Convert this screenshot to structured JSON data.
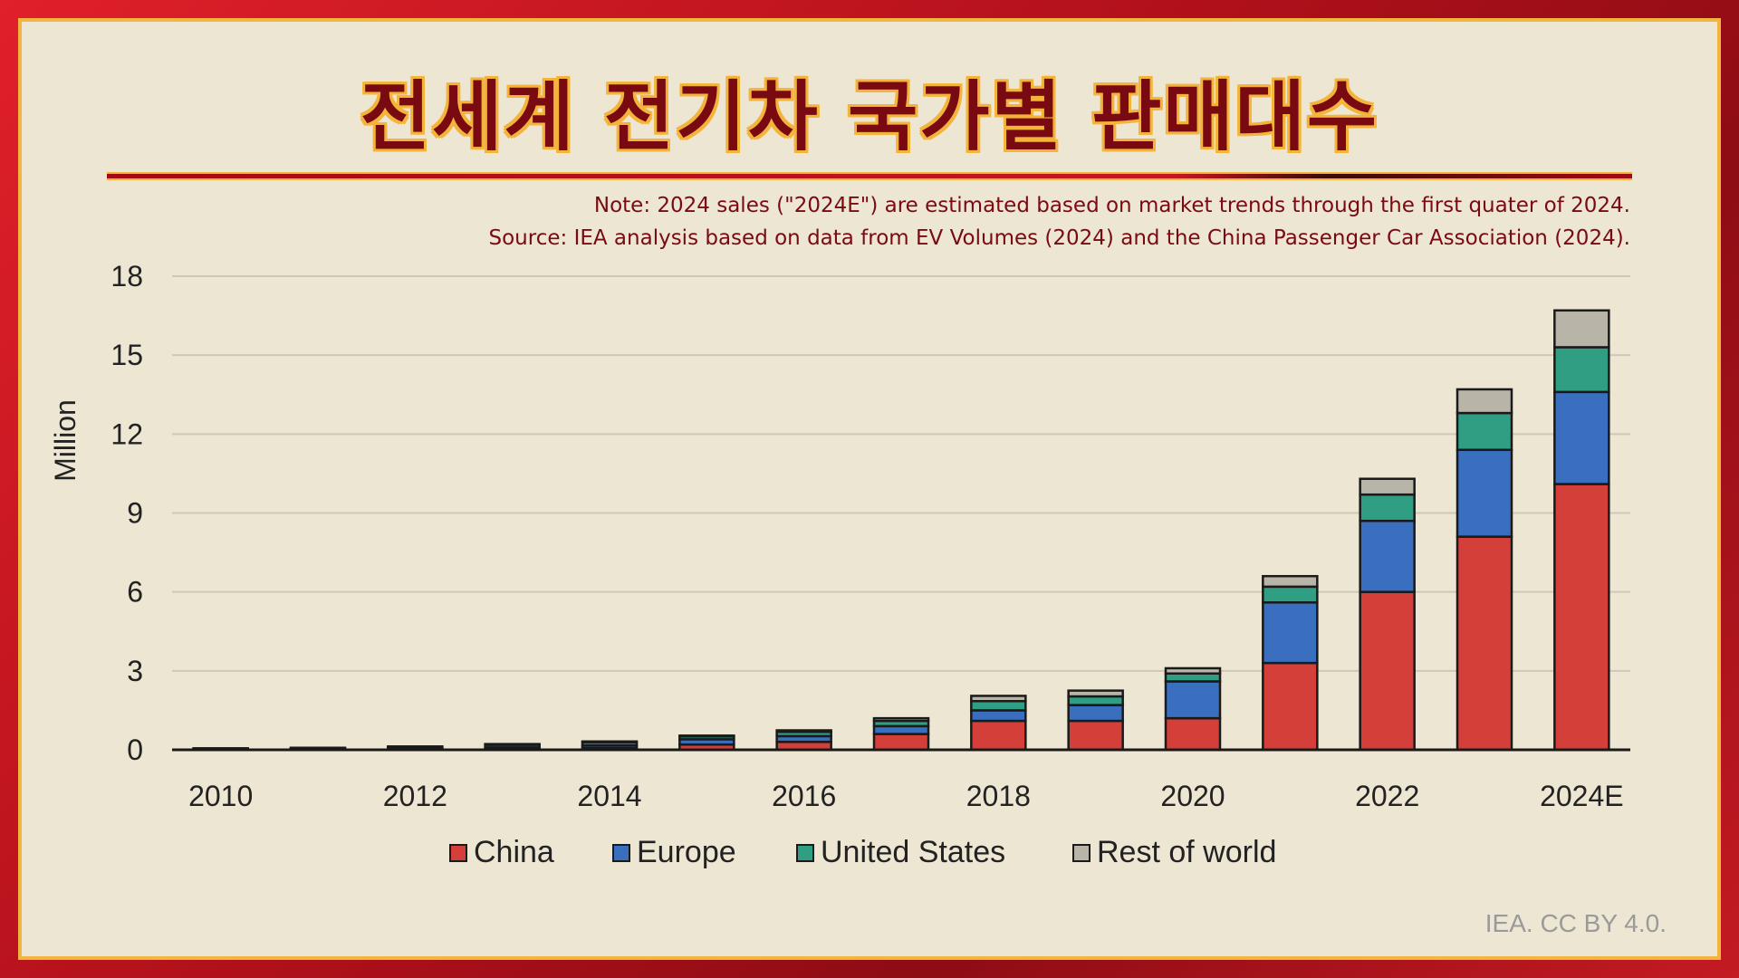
{
  "title": "전세계 전기차 국가별 판매대수",
  "note": "Note: 2024 sales (\"2024E\") are estimated based on market trends through the first quater of 2024.",
  "source": "Source: IEA analysis based on data from EV Volumes (2024) and the China Passenger Car Association (2024).",
  "credit": "IEA. CC BY 4.0.",
  "colors": {
    "China": "#d43f3a",
    "Europe": "#3a6fc0",
    "United States": "#2f9e82",
    "Rest of world": "#b8b4a8"
  },
  "chart_data": {
    "type": "bar",
    "stacked": true,
    "ylabel": "Million",
    "ylim": [
      0,
      18
    ],
    "yticks": [
      0,
      3,
      6,
      9,
      12,
      15,
      18
    ],
    "grid": true,
    "legend": "bottom",
    "categories": [
      "2010",
      "2011",
      "2012",
      "2013",
      "2014",
      "2015",
      "2016",
      "2017",
      "2018",
      "2019",
      "2020",
      "2021",
      "2022",
      "2023",
      "2024E"
    ],
    "xtick_labels": [
      "2010",
      "2012",
      "2014",
      "2016",
      "2018",
      "2020",
      "2022",
      "2024E"
    ],
    "series": [
      {
        "name": "China",
        "values": [
          0.01,
          0.01,
          0.01,
          0.02,
          0.07,
          0.2,
          0.3,
          0.6,
          1.1,
          1.1,
          1.2,
          3.3,
          6.0,
          8.1,
          10.1
        ]
      },
      {
        "name": "Europe",
        "values": [
          0.01,
          0.02,
          0.04,
          0.07,
          0.1,
          0.2,
          0.22,
          0.3,
          0.4,
          0.6,
          1.4,
          2.3,
          2.7,
          3.3,
          3.5
        ]
      },
      {
        "name": "United States",
        "values": [
          0.01,
          0.02,
          0.05,
          0.1,
          0.12,
          0.11,
          0.16,
          0.2,
          0.35,
          0.33,
          0.3,
          0.6,
          1.0,
          1.4,
          1.7
        ]
      },
      {
        "name": "Rest of world",
        "values": [
          0.0,
          0.01,
          0.01,
          0.01,
          0.02,
          0.03,
          0.06,
          0.1,
          0.2,
          0.22,
          0.2,
          0.4,
          0.6,
          0.9,
          1.4
        ]
      }
    ]
  }
}
